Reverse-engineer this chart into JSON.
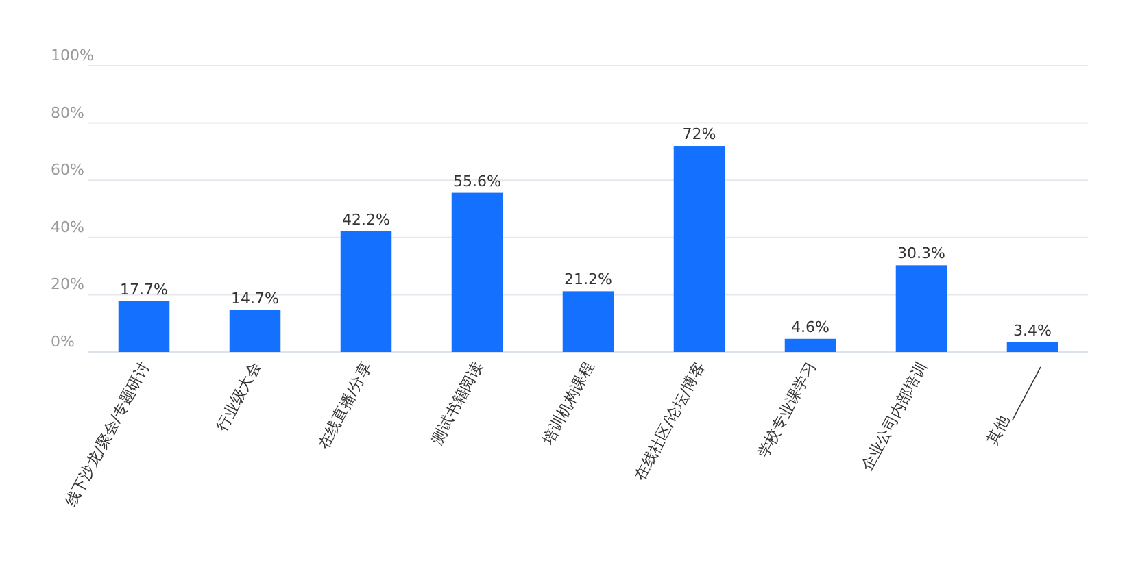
{
  "chart_data": {
    "type": "bar",
    "categories": [
      "线下沙龙/聚会/专题研讨",
      "行业级大会",
      "在线直播/分享",
      "测试书籍阅读",
      "培训机构课程",
      "在线社区/论坛/博客",
      "学校专业课学习",
      "企业公司内部培训",
      "其他________"
    ],
    "values": [
      17.7,
      14.7,
      42.2,
      55.6,
      21.2,
      72,
      4.6,
      30.3,
      3.4
    ],
    "value_labels": [
      "17.7%",
      "14.7%",
      "42.2%",
      "55.6%",
      "21.2%",
      "72%",
      "4.6%",
      "30.3%",
      "3.4%"
    ],
    "color": "#1470ff",
    "ylim": [
      0,
      100
    ],
    "yticks": [
      {
        "value": 0,
        "label": "0%"
      },
      {
        "value": 20,
        "label": "20%"
      },
      {
        "value": 40,
        "label": "40%"
      },
      {
        "value": 60,
        "label": "60%"
      },
      {
        "value": 80,
        "label": "80%"
      },
      {
        "value": 100,
        "label": "100%"
      }
    ],
    "grid": "y"
  }
}
